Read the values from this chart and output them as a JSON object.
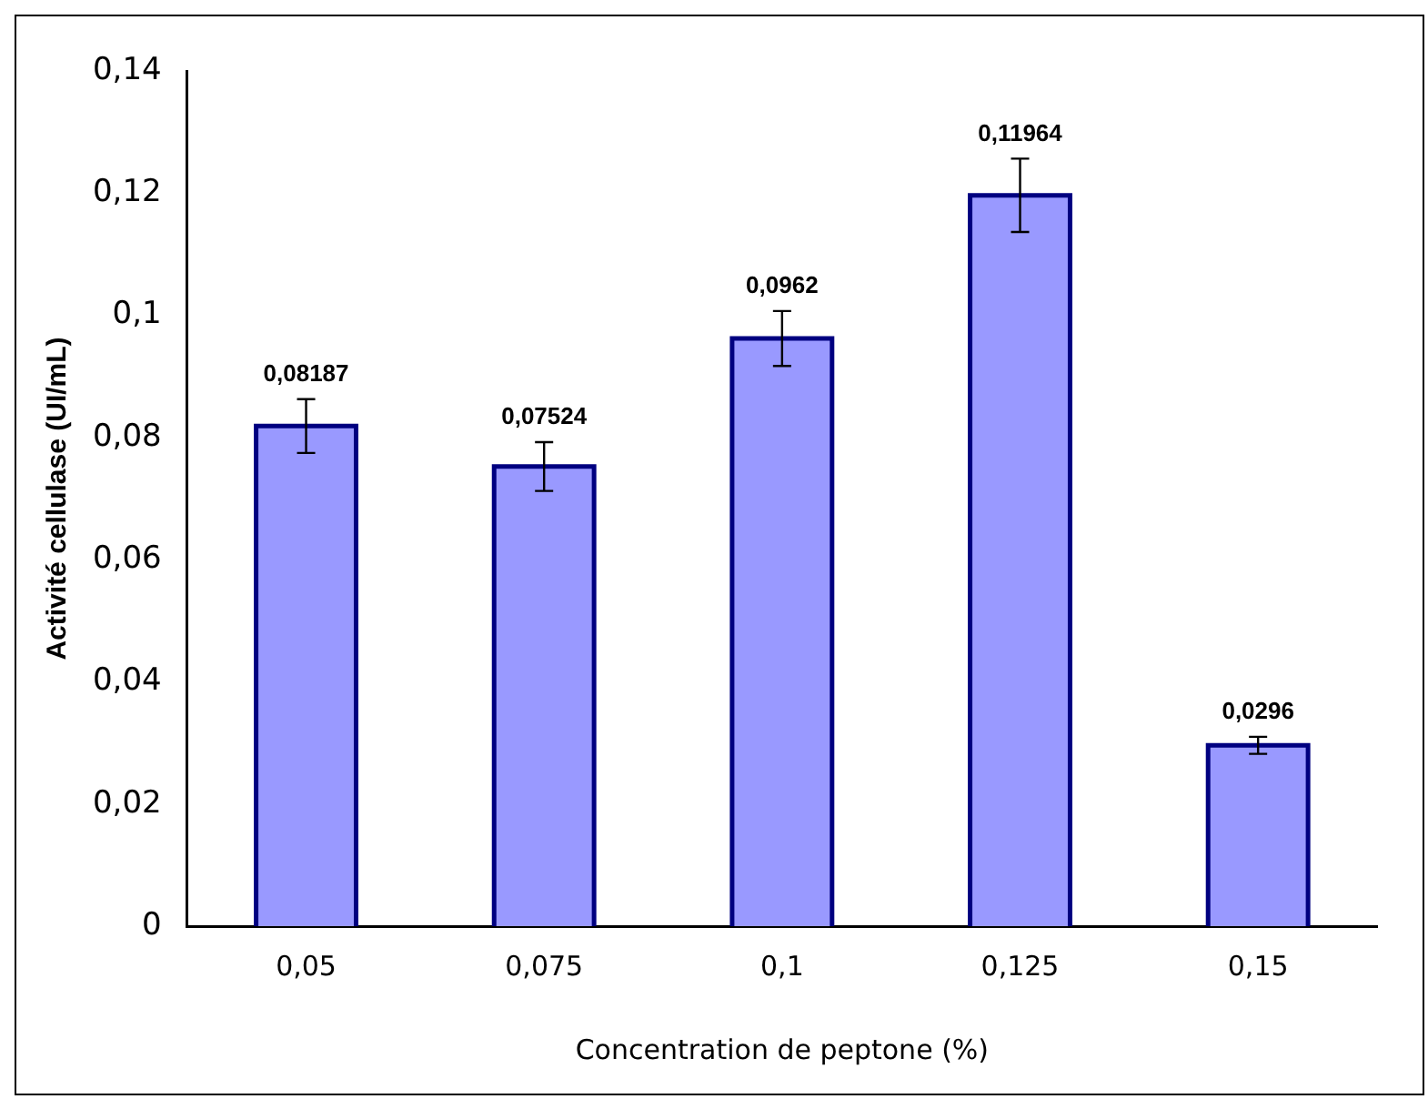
{
  "chart_data": {
    "type": "bar",
    "xlabel": "Concentration de peptone (%)",
    "ylabel": "Activité cellulase (UI/mL)",
    "categories": [
      "0,05",
      "0,075",
      "0,1",
      "0,125",
      "0,15"
    ],
    "values": [
      0.08187,
      0.07524,
      0.0962,
      0.11964,
      0.0296
    ],
    "value_labels": [
      "0,08187",
      "0,07524",
      "0,0962",
      "0,11964",
      "0,0296"
    ],
    "errors": [
      0.0044,
      0.004,
      0.0045,
      0.006,
      0.0014
    ],
    "color": "#9999ff",
    "ylim": [
      0,
      0.14
    ],
    "yticks": [
      {
        "value": 0,
        "label": "0"
      },
      {
        "value": 0.02,
        "label": "0,02"
      },
      {
        "value": 0.04,
        "label": "0,04"
      },
      {
        "value": 0.06,
        "label": "0,06"
      },
      {
        "value": 0.08,
        "label": "0,08"
      },
      {
        "value": 0.1,
        "label": "0,1"
      },
      {
        "value": 0.12,
        "label": "0,12"
      },
      {
        "value": 0.14,
        "label": "0,14"
      }
    ],
    "grid": false,
    "legend": false
  }
}
